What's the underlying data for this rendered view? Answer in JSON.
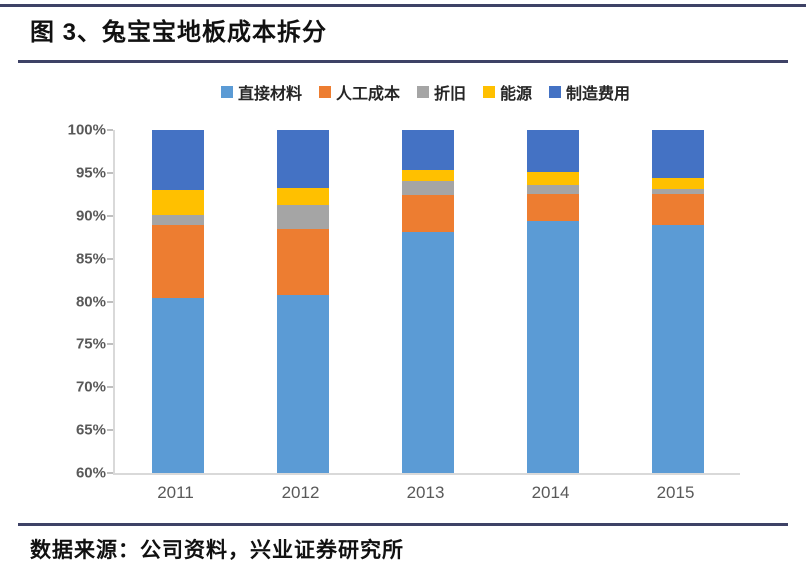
{
  "page": {
    "title": "图 3、兔宝宝地板成本拆分",
    "source": "数据来源：公司资料，兴业证券研究所",
    "rule_color": "#3E4266"
  },
  "chart_data": {
    "type": "bar",
    "stacked": true,
    "title": "兔宝宝地板成本拆分",
    "legend_position": "top",
    "grid": false,
    "categories": [
      "2011",
      "2012",
      "2013",
      "2014",
      "2015"
    ],
    "series": [
      {
        "name": "直接材料",
        "color": "#5B9BD5",
        "values": [
          80.4,
          80.8,
          88.1,
          89.4,
          88.9
        ]
      },
      {
        "name": "人工成本",
        "color": "#ED7D31",
        "values": [
          8.5,
          7.7,
          4.3,
          3.1,
          3.6
        ]
      },
      {
        "name": "折旧",
        "color": "#A5A5A5",
        "values": [
          1.2,
          2.7,
          1.6,
          1.1,
          0.6
        ]
      },
      {
        "name": "能源",
        "color": "#FFC000",
        "values": [
          2.9,
          2.0,
          1.3,
          1.5,
          1.3
        ]
      },
      {
        "name": "制造费用",
        "color": "#4472C4",
        "values": [
          7.0,
          6.8,
          4.7,
          4.9,
          5.6
        ]
      }
    ],
    "ylim": [
      60,
      100
    ],
    "yticks": [
      {
        "label": "100%",
        "value": 100
      },
      {
        "label": "95%",
        "value": 95
      },
      {
        "label": "90%",
        "value": 90
      },
      {
        "label": "85%",
        "value": 85
      },
      {
        "label": "80%",
        "value": 80
      },
      {
        "label": "75%",
        "value": 75
      },
      {
        "label": "70%",
        "value": 70
      },
      {
        "label": "65%",
        "value": 65
      },
      {
        "label": "60%",
        "value": 60
      }
    ],
    "axis_color": "#D9D9D9",
    "tick_color": "#BFBFBF"
  }
}
